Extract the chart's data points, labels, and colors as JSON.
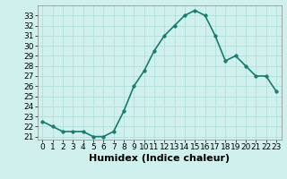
{
  "x": [
    0,
    1,
    2,
    3,
    4,
    5,
    6,
    7,
    8,
    9,
    10,
    11,
    12,
    13,
    14,
    15,
    16,
    17,
    18,
    19,
    20,
    21,
    22,
    23
  ],
  "y": [
    22.5,
    22.0,
    21.5,
    21.5,
    21.5,
    21.0,
    21.0,
    21.5,
    23.5,
    26.0,
    27.5,
    29.5,
    31.0,
    32.0,
    33.0,
    33.5,
    33.0,
    31.0,
    28.5,
    29.0,
    28.0,
    27.0,
    27.0,
    25.5
  ],
  "xlabel": "Humidex (Indice chaleur)",
  "xlim": [
    -0.5,
    23.5
  ],
  "ylim": [
    20.7,
    34.0
  ],
  "yticks": [
    21,
    22,
    23,
    24,
    25,
    26,
    27,
    28,
    29,
    30,
    31,
    32,
    33
  ],
  "xticks": [
    0,
    1,
    2,
    3,
    4,
    5,
    6,
    7,
    8,
    9,
    10,
    11,
    12,
    13,
    14,
    15,
    16,
    17,
    18,
    19,
    20,
    21,
    22,
    23
  ],
  "line_color": "#1a7a6e",
  "bg_color": "#cff0ec",
  "grid_color": "#aaddd8",
  "xlabel_fontsize": 8,
  "tick_fontsize": 6.5,
  "linewidth": 1.2,
  "markersize": 2.5
}
